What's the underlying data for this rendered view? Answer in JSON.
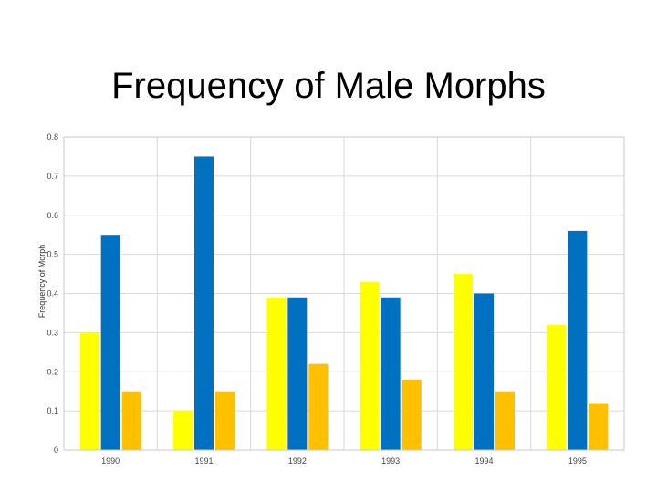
{
  "chart_data": {
    "type": "bar",
    "title": "Frequency of Male Morphs",
    "xlabel": "",
    "ylabel": "Frequency of Morph",
    "categories": [
      "1990",
      "1991",
      "1992",
      "1993",
      "1994",
      "1995"
    ],
    "ylim": [
      0,
      0.8
    ],
    "yticks": [
      "0",
      "0.1",
      "0.2",
      "0.3",
      "0.4",
      "0.5",
      "0.6",
      "0.7",
      "0.8"
    ],
    "grid": true,
    "series": [
      {
        "color": "#ffff00",
        "values": [
          0.3,
          0.1,
          0.39,
          0.43,
          0.45,
          0.32
        ]
      },
      {
        "color": "#0070c0",
        "values": [
          0.55,
          0.75,
          0.39,
          0.39,
          0.4,
          0.56
        ]
      },
      {
        "color": "#ffc000",
        "values": [
          0.15,
          0.15,
          0.22,
          0.18,
          0.15,
          0.12
        ]
      }
    ]
  }
}
